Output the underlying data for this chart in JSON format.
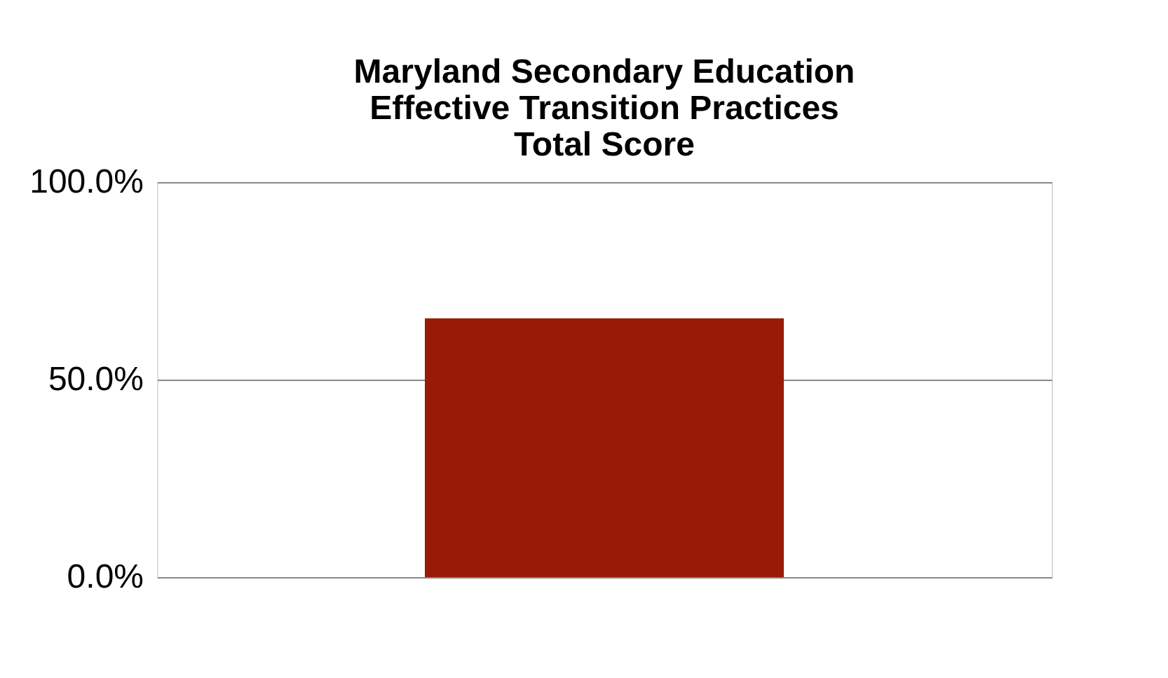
{
  "chart_data": {
    "type": "bar",
    "title": [
      "Maryland Secondary Education",
      "Effective Transition Practices",
      "Total Score"
    ],
    "categories": [
      null
    ],
    "values": [
      65.5
    ],
    "color": "#991a05",
    "ylim": [
      0,
      100
    ],
    "yticks": [
      {
        "value": 0,
        "label": "0.0%"
      },
      {
        "value": 50,
        "label": "50.0%"
      },
      {
        "value": 100,
        "label": "100.0%"
      }
    ],
    "grid": "y"
  }
}
